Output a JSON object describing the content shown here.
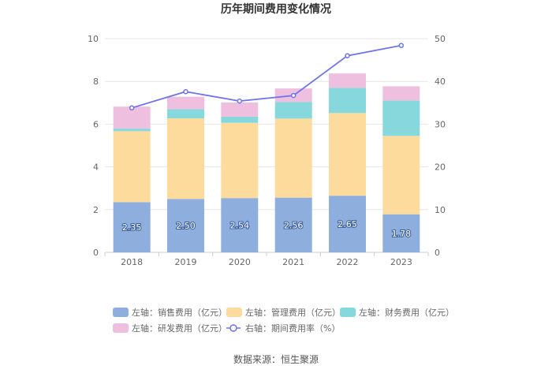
{
  "chart_data": {
    "type": "bar",
    "title": "历年期间费用变化情况",
    "categories": [
      "2018",
      "2019",
      "2020",
      "2021",
      "2022",
      "2023"
    ],
    "stacked": true,
    "left_axis": {
      "ticks": [
        "0",
        "2",
        "4",
        "6",
        "8",
        "10"
      ],
      "ylim": [
        0,
        10
      ]
    },
    "right_axis": {
      "ticks": [
        "0",
        "10",
        "20",
        "30",
        "40",
        "50"
      ],
      "ylim": [
        0,
        50
      ]
    },
    "series": [
      {
        "name": "左轴：销售费用（亿元）",
        "axis": "left",
        "color": "#8eaedd",
        "values": [
          2.35,
          2.5,
          2.54,
          2.56,
          2.65,
          1.78
        ],
        "labels": [
          "2.35",
          "2.50",
          "2.54",
          "2.56",
          "2.65",
          "1.78"
        ]
      },
      {
        "name": "左轴：管理费用（亿元）",
        "axis": "left",
        "color": "#fddb9c",
        "values": [
          3.32,
          3.77,
          3.52,
          3.7,
          3.87,
          3.67
        ]
      },
      {
        "name": "左轴：财务费用（亿元）",
        "axis": "left",
        "color": "#86d8dc",
        "values": [
          0.12,
          0.43,
          0.29,
          0.78,
          1.18,
          1.65
        ]
      },
      {
        "name": "左轴：研发费用（亿元）",
        "axis": "left",
        "color": "#eebfdf",
        "values": [
          1.03,
          0.58,
          0.66,
          0.63,
          0.67,
          0.67
        ]
      },
      {
        "name": "右轴：期间费用率（%）",
        "axis": "right",
        "type": "line",
        "color": "#6f74e8",
        "values": [
          33.8,
          37.6,
          35.4,
          36.7,
          46.0,
          48.4
        ]
      }
    ],
    "legend_position": "bottom"
  },
  "source": "数据来源：恒生聚源"
}
